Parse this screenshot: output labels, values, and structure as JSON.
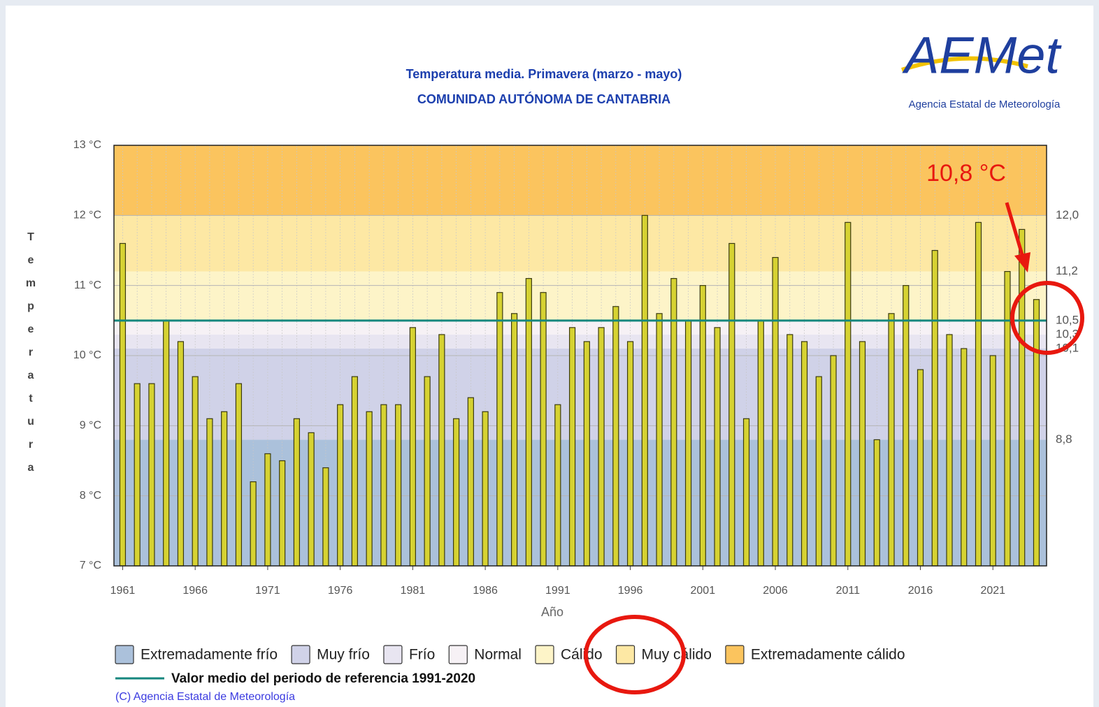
{
  "chart_data": {
    "type": "bar",
    "title": "Temperatura media. Primavera (marzo - mayo)",
    "subtitle": "COMUNIDAD AUTÓNOMA DE CANTABRIA",
    "x_label": "Año",
    "y_label": "Temperatura",
    "x": [
      1961,
      1962,
      1963,
      1964,
      1965,
      1966,
      1967,
      1968,
      1969,
      1970,
      1971,
      1972,
      1973,
      1974,
      1975,
      1976,
      1977,
      1978,
      1979,
      1980,
      1981,
      1982,
      1983,
      1984,
      1985,
      1986,
      1987,
      1988,
      1989,
      1990,
      1991,
      1992,
      1993,
      1994,
      1995,
      1996,
      1997,
      1998,
      1999,
      2000,
      2001,
      2002,
      2003,
      2004,
      2005,
      2006,
      2007,
      2008,
      2009,
      2010,
      2011,
      2012,
      2013,
      2014,
      2015,
      2016,
      2017,
      2018,
      2019,
      2020,
      2021,
      2022,
      2023,
      2024
    ],
    "values": [
      11.6,
      9.6,
      9.6,
      10.5,
      10.2,
      9.7,
      9.1,
      9.2,
      9.6,
      8.2,
      8.6,
      8.5,
      9.1,
      8.9,
      8.4,
      9.3,
      9.7,
      9.2,
      9.3,
      9.3,
      10.4,
      9.7,
      10.3,
      9.1,
      9.4,
      9.2,
      10.9,
      10.6,
      11.1,
      10.9,
      9.3,
      10.4,
      10.2,
      10.4,
      10.7,
      10.2,
      12.0,
      10.6,
      11.1,
      10.5,
      11.0,
      10.4,
      11.6,
      9.1,
      10.5,
      11.4,
      10.3,
      10.2,
      9.7,
      10.0,
      11.9,
      10.2,
      8.8,
      10.6,
      11.0,
      9.8,
      11.5,
      10.3,
      10.1,
      11.9,
      10.0,
      11.2,
      11.8,
      10.8
    ],
    "color": "#d6d232",
    "xlim": [
      1960.4,
      2024.7
    ],
    "xticks": [
      1961,
      1966,
      1971,
      1976,
      1981,
      1986,
      1991,
      1996,
      2001,
      2006,
      2011,
      2016,
      2021
    ],
    "ylim": [
      7,
      13
    ],
    "yticks": [
      {
        "value": 7,
        "label": "7 °C"
      },
      {
        "value": 8,
        "label": "8 °C"
      },
      {
        "value": 9,
        "label": "9 °C"
      },
      {
        "value": 10,
        "label": "10 °C"
      },
      {
        "value": 11,
        "label": "11 °C"
      },
      {
        "value": 12,
        "label": "12 °C"
      },
      {
        "value": 13,
        "label": "13 °C"
      }
    ],
    "grid": true,
    "thresholds": [
      {
        "value": 8.8,
        "label": "8,8"
      },
      {
        "value": 10.1,
        "label": "10,1"
      },
      {
        "value": 10.3,
        "label": "10,3"
      },
      {
        "value": 10.5,
        "label": "10,5"
      },
      {
        "value": 11.2,
        "label": "11,2"
      },
      {
        "value": 12.0,
        "label": "12,0"
      }
    ],
    "classes": [
      {
        "name": "Extremadamente frío",
        "color": "#abc1db"
      },
      {
        "name": "Muy frío",
        "color": "#d0d2e8"
      },
      {
        "name": "Frío",
        "color": "#e8e5f1"
      },
      {
        "name": "Normal",
        "color": "#f6f1f5"
      },
      {
        "name": "Cálido",
        "color": "#fdf4c8"
      },
      {
        "name": "Muy cálido",
        "color": "#fde8a4"
      },
      {
        "name": "Extremadamente cálido",
        "color": "#fbc45e"
      }
    ],
    "reference": {
      "name": "Valor medio del periodo de referencia 1991-2020",
      "value": 10.5,
      "color": "#16877e"
    },
    "annotation": {
      "text": "10,8 °C",
      "color": "#e8180f"
    },
    "copyright": "(C) Agencia Estatal de Meteorología",
    "logo": {
      "text": "AEMet",
      "caption": "Agencia Estatal de Meteorología"
    }
  }
}
